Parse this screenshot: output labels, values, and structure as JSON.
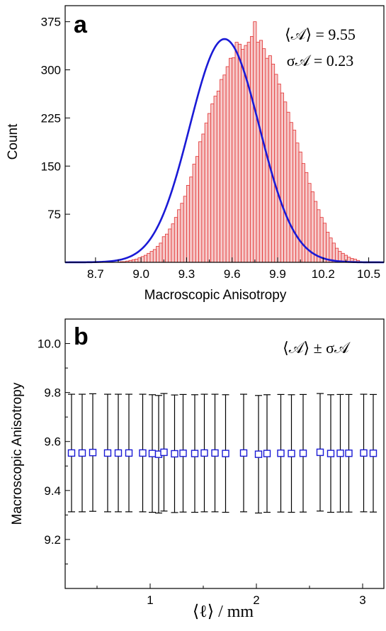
{
  "chart_data": [
    {
      "panel": "a",
      "type": "bar",
      "xlabel": "Macroscopic Anisotropy",
      "ylabel": "Count",
      "xlim": [
        8.5,
        10.6
      ],
      "ylim": [
        0,
        400
      ],
      "xticks": [
        "8.7",
        "9.0",
        "9.3",
        "9.6",
        "9.9",
        "10.2",
        "10.5"
      ],
      "yticks": [
        "75",
        "150",
        "225",
        "300",
        "375"
      ],
      "annotation": {
        "mean_line": "⟨𝒜⟩ = 9.55",
        "sigma_line": "σ𝒜 = 0.23"
      },
      "bin_width": 0.02,
      "bins_start": 8.86,
      "values": [
        1,
        1,
        2,
        3,
        4,
        5,
        7,
        9,
        11,
        14,
        17,
        20,
        25,
        30,
        40,
        44,
        52,
        60,
        70,
        82,
        92,
        103,
        120,
        133,
        153,
        165,
        188,
        200,
        217,
        232,
        247,
        259,
        267,
        285,
        292,
        305,
        318,
        319,
        343,
        340,
        332,
        338,
        343,
        352,
        375,
        343,
        346,
        333,
        318,
        322,
        309,
        293,
        278,
        264,
        250,
        234,
        218,
        206,
        186,
        172,
        154,
        140,
        123,
        110,
        95,
        82,
        70,
        61,
        47,
        38,
        30,
        22,
        17,
        14,
        11,
        8,
        6,
        5,
        3
      ],
      "fit": {
        "type": "gaussian",
        "mean": 9.55,
        "sigma": 0.23,
        "peak": 348
      }
    },
    {
      "panel": "b",
      "type": "scatter",
      "xlabel": "⟨ℓ⟩ / mm",
      "ylabel": "Macroscopic Anisotropy",
      "xlim": [
        0.2,
        3.2
      ],
      "ylim": [
        9.0,
        10.1
      ],
      "xticks": [
        "1",
        "2",
        "3"
      ],
      "yticks": [
        "9.2",
        "9.4",
        "9.6",
        "9.8",
        "10.0"
      ],
      "legend": "⟨𝒜⟩ ± σ𝒜",
      "x": [
        0.26,
        0.36,
        0.46,
        0.6,
        0.7,
        0.8,
        0.93,
        1.02,
        1.08,
        1.13,
        1.23,
        1.31,
        1.42,
        1.51,
        1.61,
        1.71,
        1.88,
        2.02,
        2.1,
        2.23,
        2.33,
        2.44,
        2.6,
        2.7,
        2.79,
        2.87,
        3.01,
        3.1
      ],
      "y": [
        9.553,
        9.553,
        9.555,
        9.553,
        9.553,
        9.553,
        9.553,
        9.551,
        9.548,
        9.556,
        9.55,
        9.552,
        9.551,
        9.553,
        9.553,
        9.551,
        9.553,
        9.548,
        9.551,
        9.552,
        9.551,
        9.552,
        9.556,
        9.551,
        9.552,
        9.552,
        9.553,
        9.552
      ],
      "yerr": [
        0.24,
        0.24,
        0.24,
        0.24,
        0.24,
        0.24,
        0.24,
        0.24,
        0.24,
        0.24,
        0.24,
        0.24,
        0.24,
        0.24,
        0.24,
        0.24,
        0.24,
        0.24,
        0.24,
        0.24,
        0.24,
        0.24,
        0.24,
        0.24,
        0.24,
        0.24,
        0.24,
        0.24
      ]
    }
  ]
}
